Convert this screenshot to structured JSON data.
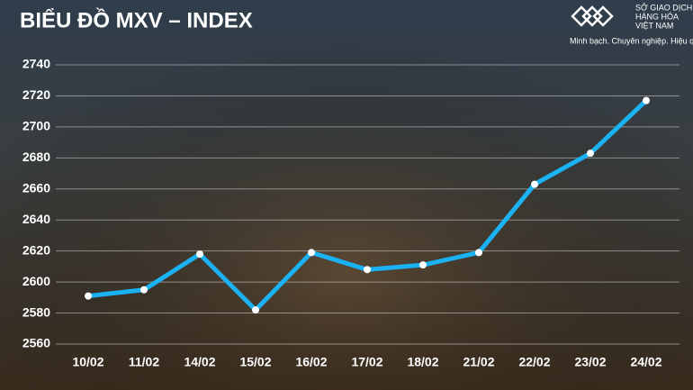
{
  "chart_data": {
    "type": "line",
    "title": "BIỂU ĐỒ MXV – INDEX",
    "categories": [
      "10/02",
      "11/02",
      "14/02",
      "15/02",
      "16/02",
      "17/02",
      "18/02",
      "21/02",
      "22/02",
      "23/02",
      "24/02"
    ],
    "series": [
      {
        "name": "MXV-Index",
        "color": "#1ab2f2",
        "values": [
          2591,
          2595,
          2618,
          2582,
          2619,
          2608,
          2611,
          2619,
          2663,
          2683,
          2717
        ]
      }
    ],
    "ylim": [
      2560,
      2740
    ],
    "yticks": [
      2560,
      2580,
      2600,
      2620,
      2640,
      2660,
      2680,
      2700,
      2720,
      2740
    ],
    "grid": true
  },
  "logo": {
    "lines": [
      "SỞ GIAO DỊCH",
      "HÀNG HÓA",
      "VIỆT NAM"
    ],
    "tagline": "Minh bạch. Chuyên nghiệp. Hiệu quả"
  }
}
